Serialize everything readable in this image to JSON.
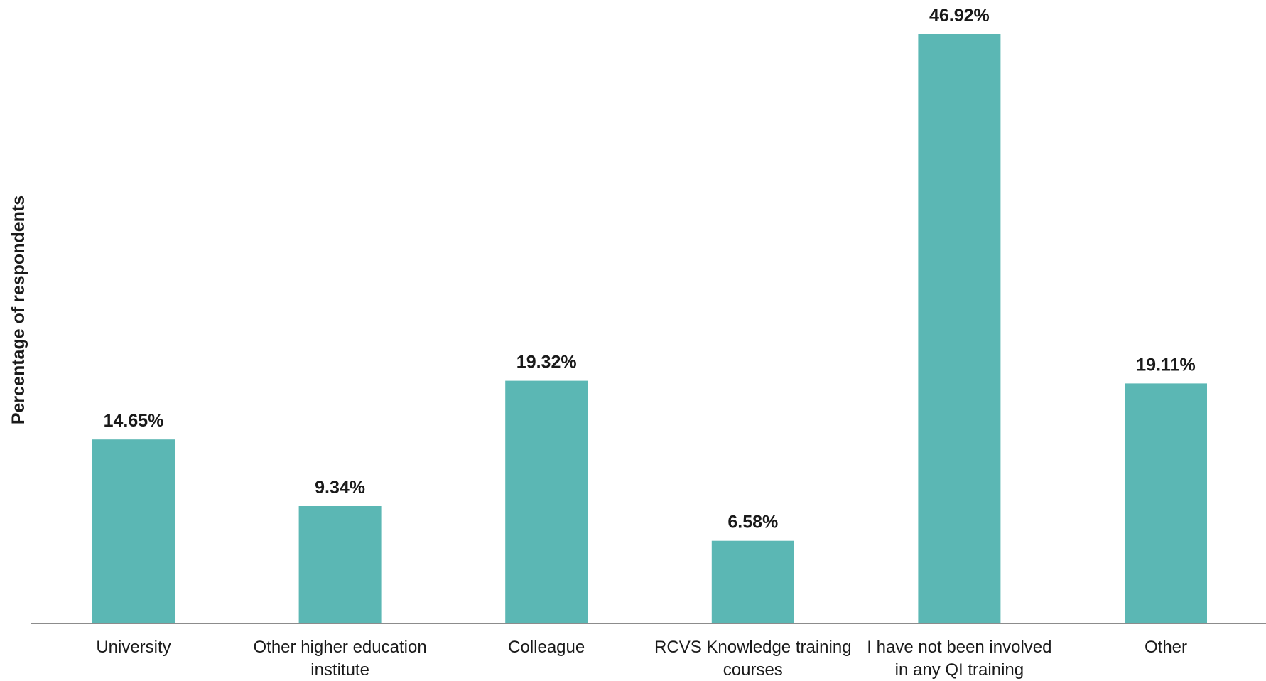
{
  "chart_data": {
    "type": "bar",
    "title": "",
    "xlabel": "",
    "ylabel": "Percentage of respondents",
    "categories": [
      [
        "University"
      ],
      [
        "Other higher education",
        "institute"
      ],
      [
        "Colleague"
      ],
      [
        "RCVS Knowledge training",
        "courses"
      ],
      [
        "I have not been involved",
        "in any QI training"
      ],
      [
        "Other"
      ]
    ],
    "values": [
      14.65,
      9.34,
      19.32,
      6.58,
      46.92,
      19.11
    ],
    "data_labels": [
      "14.65%",
      "9.34%",
      "19.32%",
      "6.58%",
      "46.92%",
      "19.11%"
    ],
    "ylim": [
      0,
      50
    ],
    "grid": false,
    "legend": "none",
    "colors": {
      "bar": "#5BB7B4",
      "axis": "#8c8c8c",
      "text": "#1a1a1a"
    }
  }
}
